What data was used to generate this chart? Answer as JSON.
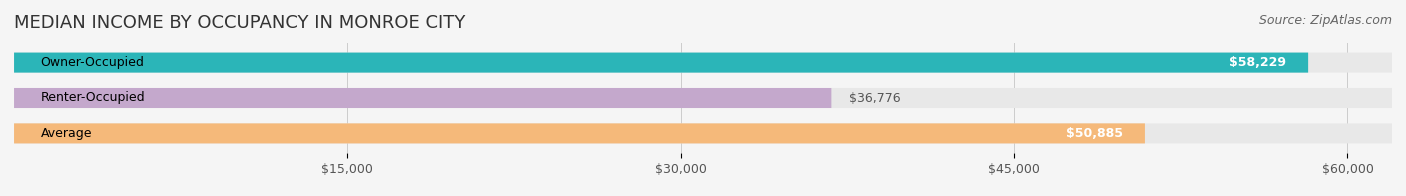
{
  "title": "MEDIAN INCOME BY OCCUPANCY IN MONROE CITY",
  "source": "Source: ZipAtlas.com",
  "categories": [
    "Owner-Occupied",
    "Renter-Occupied",
    "Average"
  ],
  "values": [
    58229,
    36776,
    50885
  ],
  "bar_colors": [
    "#2bb5b8",
    "#c4a8cc",
    "#f5b97a"
  ],
  "bar_labels": [
    "$58,229",
    "$36,776",
    "$50,885"
  ],
  "label_inside": [
    true,
    false,
    true
  ],
  "xlim": [
    0,
    62000
  ],
  "xticks": [
    15000,
    30000,
    45000,
    60000
  ],
  "xticklabels": [
    "$15,000",
    "$30,000",
    "$45,000",
    "$60,000"
  ],
  "background_color": "#f5f5f5",
  "bar_bg_color": "#e8e8e8",
  "title_fontsize": 13,
  "source_fontsize": 9,
  "label_fontsize": 9,
  "tick_fontsize": 9,
  "bar_height": 0.55
}
